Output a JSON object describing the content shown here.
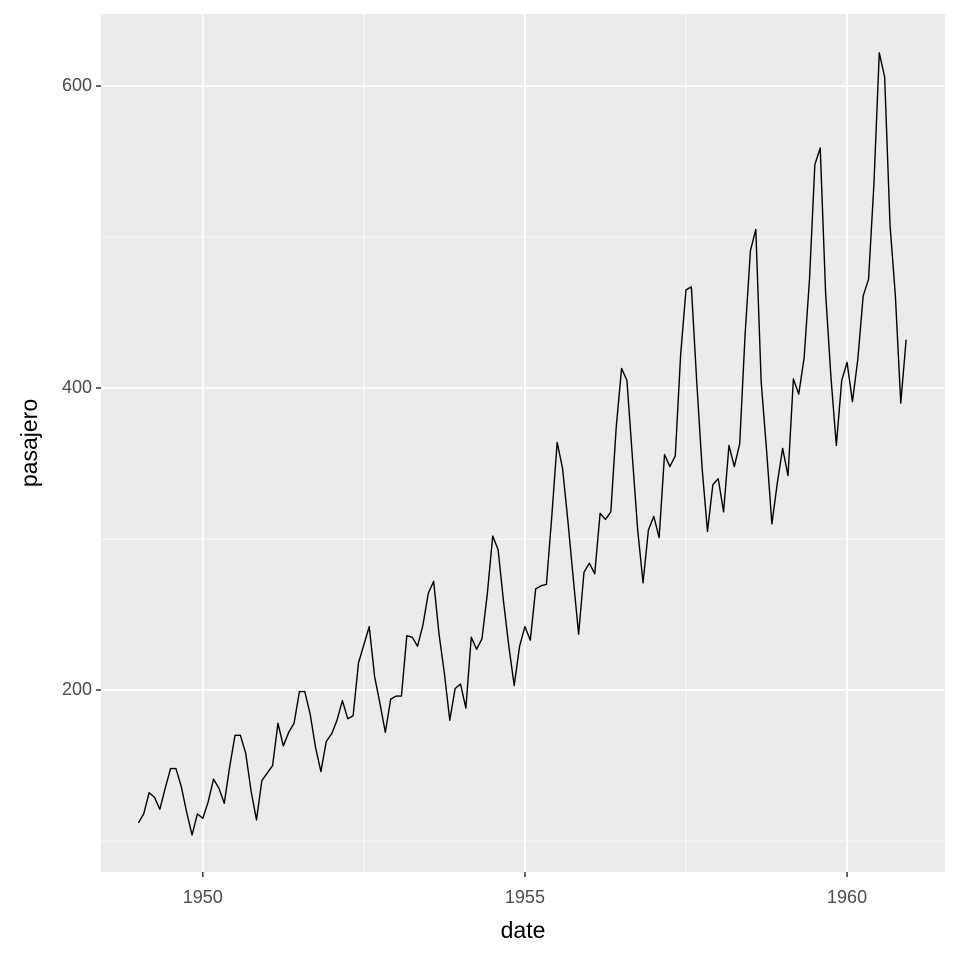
{
  "chart_data": {
    "type": "line",
    "x_label": "date",
    "y_label": "pasajero",
    "x": [
      1949,
      1949.0833,
      1949.1667,
      1949.25,
      1949.3333,
      1949.4167,
      1949.5,
      1949.5833,
      1949.6667,
      1949.75,
      1949.8333,
      1949.9167,
      1950,
      1950.0833,
      1950.1667,
      1950.25,
      1950.3333,
      1950.4167,
      1950.5,
      1950.5833,
      1950.6667,
      1950.75,
      1950.8333,
      1950.9167,
      1951,
      1951.0833,
      1951.1667,
      1951.25,
      1951.3333,
      1951.4167,
      1951.5,
      1951.5833,
      1951.6667,
      1951.75,
      1951.8333,
      1951.9167,
      1952,
      1952.0833,
      1952.1667,
      1952.25,
      1952.3333,
      1952.4167,
      1952.5,
      1952.5833,
      1952.6667,
      1952.75,
      1952.8333,
      1952.9167,
      1953,
      1953.0833,
      1953.1667,
      1953.25,
      1953.3333,
      1953.4167,
      1953.5,
      1953.5833,
      1953.6667,
      1953.75,
      1953.8333,
      1953.9167,
      1954,
      1954.0833,
      1954.1667,
      1954.25,
      1954.3333,
      1954.4167,
      1954.5,
      1954.5833,
      1954.6667,
      1954.75,
      1954.8333,
      1954.9167,
      1955,
      1955.0833,
      1955.1667,
      1955.25,
      1955.3333,
      1955.4167,
      1955.5,
      1955.5833,
      1955.6667,
      1955.75,
      1955.8333,
      1955.9167,
      1956,
      1956.0833,
      1956.1667,
      1956.25,
      1956.3333,
      1956.4167,
      1956.5,
      1956.5833,
      1956.6667,
      1956.75,
      1956.8333,
      1956.9167,
      1957,
      1957.0833,
      1957.1667,
      1957.25,
      1957.3333,
      1957.4167,
      1957.5,
      1957.5833,
      1957.6667,
      1957.75,
      1957.8333,
      1957.9167,
      1958,
      1958.0833,
      1958.1667,
      1958.25,
      1958.3333,
      1958.4167,
      1958.5,
      1958.5833,
      1958.6667,
      1958.75,
      1958.8333,
      1958.9167,
      1959,
      1959.0833,
      1959.1667,
      1959.25,
      1959.3333,
      1959.4167,
      1959.5,
      1959.5833,
      1959.6667,
      1959.75,
      1959.8333,
      1959.9167,
      1960,
      1960.0833,
      1960.1667,
      1960.25,
      1960.3333,
      1960.4167,
      1960.5,
      1960.5833,
      1960.6667,
      1960.75,
      1960.8333,
      1960.9167
    ],
    "values": [
      112,
      118,
      132,
      129,
      121,
      135,
      148,
      148,
      136,
      119,
      104,
      118,
      115,
      126,
      141,
      135,
      125,
      149,
      170,
      170,
      158,
      133,
      114,
      140,
      145,
      150,
      178,
      163,
      172,
      178,
      199,
      199,
      184,
      162,
      146,
      166,
      171,
      180,
      193,
      181,
      183,
      218,
      230,
      242,
      209,
      191,
      172,
      194,
      196,
      196,
      236,
      235,
      229,
      243,
      264,
      272,
      237,
      211,
      180,
      201,
      204,
      188,
      235,
      227,
      234,
      264,
      302,
      293,
      259,
      229,
      203,
      229,
      242,
      233,
      267,
      269,
      270,
      315,
      364,
      347,
      312,
      274,
      237,
      278,
      284,
      277,
      317,
      313,
      318,
      374,
      413,
      405,
      355,
      306,
      271,
      306,
      315,
      301,
      356,
      348,
      355,
      422,
      465,
      467,
      404,
      347,
      305,
      336,
      340,
      318,
      362,
      348,
      363,
      435,
      491,
      505,
      404,
      359,
      310,
      337,
      360,
      342,
      406,
      396,
      420,
      472,
      548,
      559,
      463,
      407,
      362,
      405,
      417,
      391,
      419,
      461,
      472,
      535,
      622,
      606,
      508,
      461,
      390,
      432
    ],
    "color": "#000000",
    "xlim": [
      1948.42,
      1961.52
    ],
    "xticks": [
      1950,
      1955,
      1960
    ],
    "ylim": [
      79.5,
      647.7
    ],
    "yticks": [
      200,
      400,
      600
    ],
    "grid": true,
    "minor_grid": true
  }
}
